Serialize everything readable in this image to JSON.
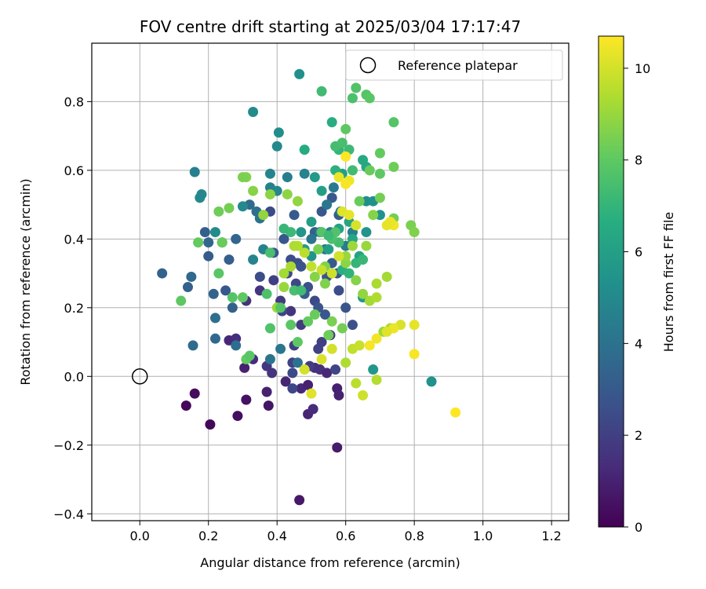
{
  "chart_data": {
    "type": "scatter",
    "title": "FOV centre drift starting at 2025/03/04 17:17:47",
    "xlabel": "Angular distance from reference (arcmin)",
    "ylabel": "Rotation from reference (arcmin)",
    "xlim": [
      -0.14,
      1.25
    ],
    "ylim": [
      -0.42,
      0.97
    ],
    "xticks": [
      "0.0",
      "0.2",
      "0.4",
      "0.6",
      "0.8",
      "1.0",
      "1.2"
    ],
    "xtick_values": [
      0.0,
      0.2,
      0.4,
      0.6,
      0.8,
      1.0,
      1.2
    ],
    "yticks": [
      "−0.4",
      "−0.2",
      "0.0",
      "0.2",
      "0.4",
      "0.6",
      "0.8"
    ],
    "ytick_values": [
      -0.4,
      -0.2,
      0.0,
      0.2,
      0.4,
      0.6,
      0.8
    ],
    "grid": true,
    "colormap": "viridis",
    "colorbar": {
      "label": "Hours from first FF file",
      "range": [
        0,
        10.7
      ],
      "ticks": [
        "0",
        "2",
        "4",
        "6",
        "8",
        "10"
      ],
      "tick_values": [
        0,
        2,
        4,
        6,
        8,
        10
      ]
    },
    "legend": {
      "placement": "upper-right",
      "entries": [
        {
          "label": "Reference platepar",
          "marker": "open-circle",
          "x": 0.0,
          "y": 0.0
        }
      ]
    },
    "points": [
      [
        0.135,
        -0.085,
        0.1
      ],
      [
        0.16,
        -0.05,
        0.3
      ],
      [
        0.205,
        -0.14,
        0.2
      ],
      [
        0.285,
        -0.115,
        0.4
      ],
      [
        0.31,
        -0.068,
        0.5
      ],
      [
        0.375,
        -0.085,
        0.6
      ],
      [
        0.465,
        -0.36,
        0.7
      ],
      [
        0.575,
        -0.207,
        0.8
      ],
      [
        0.37,
        -0.045,
        1.0
      ],
      [
        0.425,
        -0.015,
        1.1
      ],
      [
        0.47,
        -0.035,
        1.2
      ],
      [
        0.49,
        -0.11,
        1.1
      ],
      [
        0.505,
        -0.095,
        1.3
      ],
      [
        0.49,
        -0.025,
        1.0
      ],
      [
        0.575,
        -0.035,
        0.9
      ],
      [
        0.58,
        -0.055,
        1.0
      ],
      [
        0.51,
        0.025,
        1.4
      ],
      [
        0.525,
        0.02,
        1.5
      ],
      [
        0.545,
        0.01,
        1.2
      ],
      [
        0.305,
        0.025,
        1.0
      ],
      [
        0.33,
        0.05,
        1.3
      ],
      [
        0.26,
        0.105,
        1.2
      ],
      [
        0.28,
        0.11,
        1.4
      ],
      [
        0.31,
        0.22,
        1.5
      ],
      [
        0.35,
        0.25,
        1.6
      ],
      [
        0.37,
        0.03,
        1.7
      ],
      [
        0.385,
        0.01,
        1.6
      ],
      [
        0.41,
        0.22,
        1.8
      ],
      [
        0.44,
        0.19,
        1.6
      ],
      [
        0.45,
        0.09,
        2.0
      ],
      [
        0.47,
        0.15,
        1.8
      ],
      [
        0.495,
        0.03,
        1.9
      ],
      [
        0.52,
        0.08,
        2.1
      ],
      [
        0.53,
        0.1,
        2.0
      ],
      [
        0.555,
        0.12,
        1.8
      ],
      [
        0.57,
        0.02,
        2.2
      ],
      [
        0.445,
        -0.035,
        2.3
      ],
      [
        0.445,
        0.01,
        2.4
      ],
      [
        0.445,
        0.04,
        2.1
      ],
      [
        0.39,
        0.28,
        2.0
      ],
      [
        0.415,
        0.19,
        2.2
      ],
      [
        0.43,
        0.3,
        2.4
      ],
      [
        0.44,
        0.34,
        2.5
      ],
      [
        0.455,
        0.27,
        2.3
      ],
      [
        0.46,
        0.33,
        2.6
      ],
      [
        0.47,
        0.32,
        2.7
      ],
      [
        0.49,
        0.26,
        2.6
      ],
      [
        0.51,
        0.22,
        2.4
      ],
      [
        0.52,
        0.2,
        2.8
      ],
      [
        0.54,
        0.18,
        2.9
      ],
      [
        0.545,
        0.29,
        2.7
      ],
      [
        0.56,
        0.33,
        3.0
      ],
      [
        0.575,
        0.3,
        2.9
      ],
      [
        0.58,
        0.25,
        2.5
      ],
      [
        0.6,
        0.2,
        2.8
      ],
      [
        0.62,
        0.15,
        2.6
      ],
      [
        0.35,
        0.29,
        2.5
      ],
      [
        0.38,
        0.48,
        2.4
      ],
      [
        0.39,
        0.36,
        2.8
      ],
      [
        0.42,
        0.4,
        2.9
      ],
      [
        0.45,
        0.47,
        3.0
      ],
      [
        0.48,
        0.24,
        3.1
      ],
      [
        0.51,
        0.42,
        3.2
      ],
      [
        0.53,
        0.48,
        2.9
      ],
      [
        0.56,
        0.52,
        3.0
      ],
      [
        0.58,
        0.47,
        3.1
      ],
      [
        0.25,
        0.25,
        2.9
      ],
      [
        0.26,
        0.34,
        3.2
      ],
      [
        0.27,
        0.2,
        3.3
      ],
      [
        0.24,
        0.39,
        3.0
      ],
      [
        0.215,
        0.24,
        3.4
      ],
      [
        0.2,
        0.35,
        3.1
      ],
      [
        0.19,
        0.42,
        3.2
      ],
      [
        0.2,
        0.39,
        3.5
      ],
      [
        0.14,
        0.26,
        3.3
      ],
      [
        0.15,
        0.29,
        3.6
      ],
      [
        0.065,
        0.3,
        3.4
      ],
      [
        0.155,
        0.09,
        3.7
      ],
      [
        0.22,
        0.11,
        3.6
      ],
      [
        0.28,
        0.09,
        3.8
      ],
      [
        0.22,
        0.17,
        3.9
      ],
      [
        0.28,
        0.4,
        3.5
      ],
      [
        0.32,
        0.5,
        3.7
      ],
      [
        0.34,
        0.48,
        3.9
      ],
      [
        0.35,
        0.46,
        4.0
      ],
      [
        0.38,
        0.05,
        4.1
      ],
      [
        0.41,
        0.08,
        4.2
      ],
      [
        0.46,
        0.04,
        4.0
      ],
      [
        0.5,
        0.4,
        4.2
      ],
      [
        0.525,
        0.42,
        4.3
      ],
      [
        0.54,
        0.37,
        4.1
      ],
      [
        0.555,
        0.42,
        4.4
      ],
      [
        0.545,
        0.5,
        4.2
      ],
      [
        0.565,
        0.55,
        4.3
      ],
      [
        0.585,
        0.48,
        4.5
      ],
      [
        0.6,
        0.38,
        4.4
      ],
      [
        0.62,
        0.42,
        4.6
      ],
      [
        0.48,
        0.59,
        4.7
      ],
      [
        0.43,
        0.58,
        4.5
      ],
      [
        0.38,
        0.59,
        4.8
      ],
      [
        0.38,
        0.55,
        4.6
      ],
      [
        0.36,
        0.37,
        4.7
      ],
      [
        0.4,
        0.54,
        4.9
      ],
      [
        0.33,
        0.34,
        4.8
      ],
      [
        0.3,
        0.495,
        5.0
      ],
      [
        0.16,
        0.595,
        4.6
      ],
      [
        0.175,
        0.52,
        5.0
      ],
      [
        0.18,
        0.53,
        4.9
      ],
      [
        0.22,
        0.42,
        5.1
      ],
      [
        0.4,
        0.67,
        5.0
      ],
      [
        0.405,
        0.71,
        5.2
      ],
      [
        0.33,
        0.77,
        5.1
      ],
      [
        0.465,
        0.88,
        5.3
      ],
      [
        0.66,
        0.51,
        5.2
      ],
      [
        0.7,
        0.47,
        5.4
      ],
      [
        0.68,
        0.51,
        5.3
      ],
      [
        0.66,
        0.42,
        5.5
      ],
      [
        0.85,
        -0.015,
        5.4
      ],
      [
        0.68,
        0.02,
        5.6
      ],
      [
        0.65,
        0.23,
        5.7
      ],
      [
        0.47,
        0.42,
        5.6
      ],
      [
        0.48,
        0.37,
        5.8
      ],
      [
        0.5,
        0.35,
        5.5
      ],
      [
        0.5,
        0.45,
        5.9
      ],
      [
        0.51,
        0.58,
        5.7
      ],
      [
        0.53,
        0.54,
        6.0
      ],
      [
        0.55,
        0.37,
        5.9
      ],
      [
        0.56,
        0.41,
        5.8
      ],
      [
        0.58,
        0.43,
        6.1
      ],
      [
        0.59,
        0.59,
        6.0
      ],
      [
        0.61,
        0.45,
        6.2
      ],
      [
        0.62,
        0.4,
        6.3
      ],
      [
        0.64,
        0.35,
        6.2
      ],
      [
        0.65,
        0.63,
        6.4
      ],
      [
        0.66,
        0.61,
        6.3
      ],
      [
        0.48,
        0.66,
        6.5
      ],
      [
        0.56,
        0.74,
        6.6
      ],
      [
        0.57,
        0.6,
        6.8
      ],
      [
        0.59,
        0.31,
        6.7
      ],
      [
        0.61,
        0.3,
        6.9
      ],
      [
        0.63,
        0.33,
        7.0
      ],
      [
        0.65,
        0.34,
        7.1
      ],
      [
        0.58,
        0.66,
        7.0
      ],
      [
        0.62,
        0.6,
        7.3
      ],
      [
        0.61,
        0.66,
        7.2
      ],
      [
        0.57,
        0.67,
        7.4
      ],
      [
        0.59,
        0.68,
        7.5
      ],
      [
        0.53,
        0.83,
        7.3
      ],
      [
        0.62,
        0.81,
        7.6
      ],
      [
        0.63,
        0.84,
        7.7
      ],
      [
        0.66,
        0.82,
        7.8
      ],
      [
        0.67,
        0.81,
        7.9
      ],
      [
        0.6,
        0.72,
        8.0
      ],
      [
        0.74,
        0.74,
        7.8
      ],
      [
        0.7,
        0.65,
        8.1
      ],
      [
        0.7,
        0.59,
        8.0
      ],
      [
        0.67,
        0.6,
        8.2
      ],
      [
        0.74,
        0.61,
        8.3
      ],
      [
        0.7,
        0.52,
        8.4
      ],
      [
        0.64,
        0.51,
        8.2
      ],
      [
        0.79,
        0.44,
        8.5
      ],
      [
        0.8,
        0.42,
        8.6
      ],
      [
        0.74,
        0.46,
        8.4
      ],
      [
        0.68,
        0.47,
        8.7
      ],
      [
        0.52,
        0.37,
        8.5
      ],
      [
        0.54,
        0.32,
        8.6
      ],
      [
        0.6,
        0.33,
        8.8
      ],
      [
        0.63,
        0.28,
        8.7
      ],
      [
        0.65,
        0.24,
        8.9
      ],
      [
        0.6,
        0.35,
        9.0
      ],
      [
        0.62,
        0.38,
        9.1
      ],
      [
        0.66,
        0.38,
        9.0
      ],
      [
        0.67,
        0.22,
        9.2
      ],
      [
        0.69,
        0.27,
        9.3
      ],
      [
        0.72,
        0.29,
        9.2
      ],
      [
        0.69,
        0.23,
        9.4
      ],
      [
        0.71,
        0.13,
        9.1
      ],
      [
        0.73,
        0.14,
        9.3
      ],
      [
        0.69,
        -0.01,
        9.5
      ],
      [
        0.63,
        -0.02,
        9.6
      ],
      [
        0.6,
        0.04,
        9.4
      ],
      [
        0.62,
        0.08,
        9.7
      ],
      [
        0.64,
        0.09,
        9.8
      ],
      [
        0.65,
        -0.055,
        9.9
      ],
      [
        0.56,
        0.08,
        10.0
      ],
      [
        0.53,
        0.05,
        10.1
      ],
      [
        0.5,
        -0.05,
        10.2
      ],
      [
        0.48,
        0.02,
        10.0
      ],
      [
        0.76,
        0.15,
        10.1
      ],
      [
        0.8,
        0.15,
        10.3
      ],
      [
        0.74,
        0.14,
        10.4
      ],
      [
        0.72,
        0.13,
        10.2
      ],
      [
        0.69,
        0.11,
        10.5
      ],
      [
        0.67,
        0.09,
        10.6
      ],
      [
        0.92,
        -0.105,
        10.7
      ],
      [
        0.8,
        0.065,
        10.6
      ],
      [
        0.74,
        0.44,
        10.5
      ],
      [
        0.73,
        0.45,
        10.4
      ],
      [
        0.72,
        0.44,
        10.3
      ],
      [
        0.61,
        0.57,
        10.5
      ],
      [
        0.6,
        0.56,
        10.6
      ],
      [
        0.58,
        0.58,
        10.4
      ],
      [
        0.6,
        0.64,
        10.7
      ],
      [
        0.59,
        0.48,
        10.2
      ],
      [
        0.61,
        0.47,
        10.3
      ],
      [
        0.63,
        0.44,
        10.1
      ],
      [
        0.58,
        0.35,
        10.0
      ],
      [
        0.56,
        0.3,
        9.9
      ],
      [
        0.53,
        0.31,
        9.8
      ],
      [
        0.5,
        0.32,
        9.7
      ],
      [
        0.48,
        0.36,
        9.6
      ],
      [
        0.46,
        0.38,
        9.5
      ],
      [
        0.45,
        0.38,
        9.4
      ],
      [
        0.44,
        0.32,
        9.3
      ],
      [
        0.42,
        0.3,
        9.2
      ],
      [
        0.4,
        0.2,
        9.1
      ],
      [
        0.42,
        0.26,
        9.0
      ],
      [
        0.46,
        0.51,
        8.9
      ],
      [
        0.43,
        0.53,
        8.8
      ],
      [
        0.51,
        0.29,
        8.7
      ],
      [
        0.54,
        0.27,
        8.6
      ],
      [
        0.56,
        0.16,
        8.5
      ],
      [
        0.59,
        0.14,
        8.4
      ],
      [
        0.55,
        0.12,
        8.3
      ],
      [
        0.51,
        0.18,
        8.2
      ],
      [
        0.49,
        0.16,
        8.1
      ],
      [
        0.46,
        0.1,
        8.0
      ],
      [
        0.44,
        0.15,
        7.9
      ],
      [
        0.41,
        0.2,
        7.8
      ],
      [
        0.38,
        0.14,
        7.7
      ],
      [
        0.37,
        0.24,
        7.6
      ],
      [
        0.38,
        0.36,
        7.5
      ],
      [
        0.36,
        0.47,
        8.9
      ],
      [
        0.38,
        0.53,
        8.8
      ],
      [
        0.33,
        0.54,
        8.7
      ],
      [
        0.31,
        0.58,
        8.6
      ],
      [
        0.3,
        0.58,
        8.5
      ],
      [
        0.26,
        0.49,
        8.4
      ],
      [
        0.23,
        0.48,
        8.3
      ],
      [
        0.24,
        0.39,
        8.2
      ],
      [
        0.17,
        0.39,
        8.1
      ],
      [
        0.12,
        0.22,
        8.0
      ],
      [
        0.23,
        0.3,
        7.9
      ],
      [
        0.27,
        0.23,
        7.8
      ],
      [
        0.3,
        0.23,
        8.0
      ],
      [
        0.31,
        0.05,
        8.1
      ],
      [
        0.32,
        0.06,
        7.9
      ],
      [
        0.45,
        0.25,
        7.5
      ],
      [
        0.47,
        0.25,
        7.3
      ],
      [
        0.44,
        0.42,
        7.2
      ],
      [
        0.42,
        0.43,
        7.1
      ],
      [
        0.58,
        0.39,
        7.4
      ],
      [
        0.56,
        0.4,
        7.6
      ],
      [
        0.57,
        0.42,
        7.7
      ],
      [
        0.53,
        0.42,
        7.8
      ],
      [
        0.55,
        0.41,
        7.2
      ]
    ]
  }
}
